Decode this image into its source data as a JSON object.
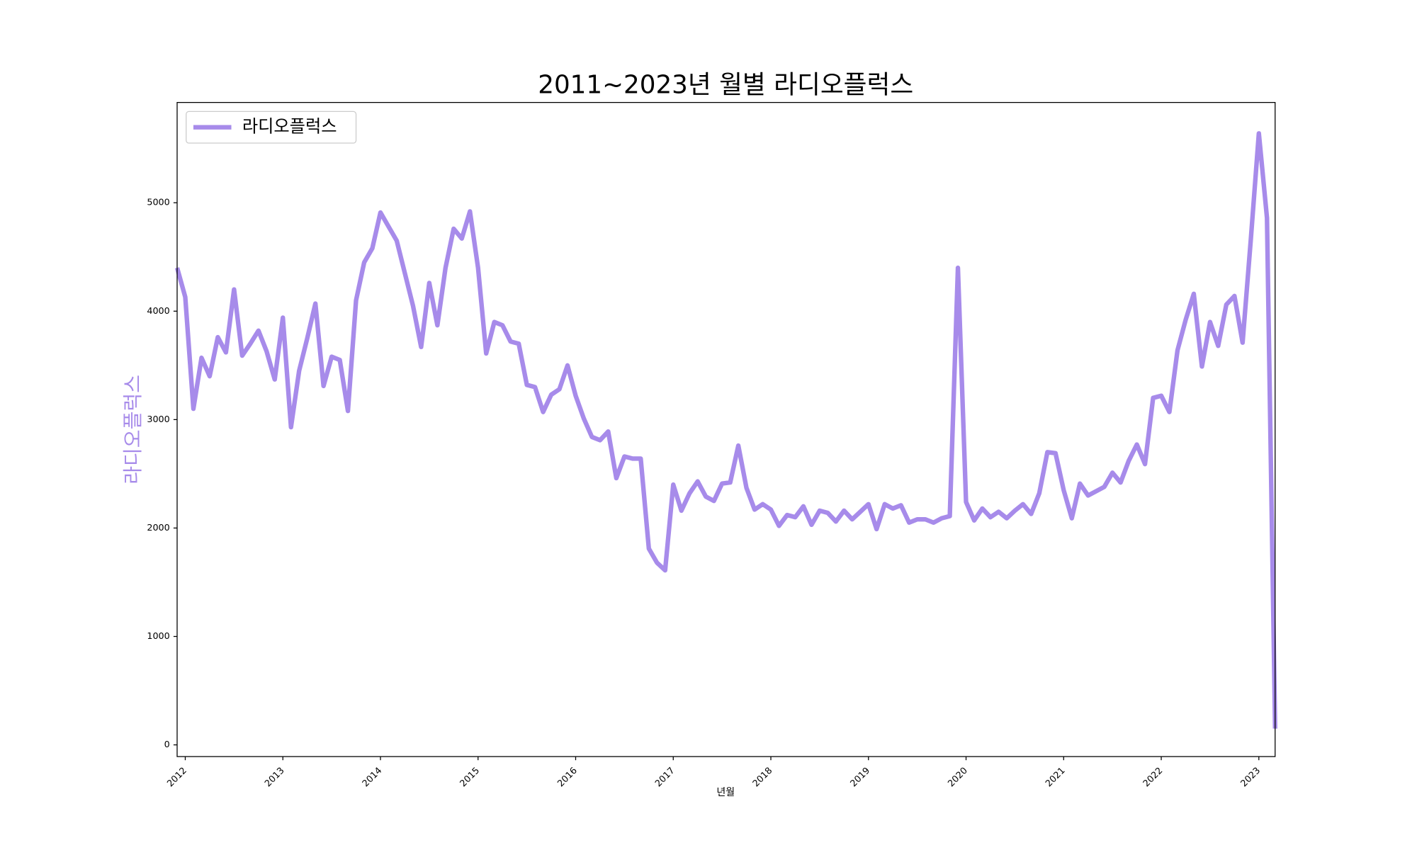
{
  "chart_data": {
    "type": "line",
    "title": "2011~2023년 월별 라디오플럭스",
    "x_label": "년월",
    "y_label": "라디오플럭스",
    "x": [
      "2011-12",
      "2012-01",
      "2012-02",
      "2012-03",
      "2012-04",
      "2012-05",
      "2012-06",
      "2012-07",
      "2012-08",
      "2012-09",
      "2012-10",
      "2012-11",
      "2012-12",
      "2013-01",
      "2013-02",
      "2013-03",
      "2013-04",
      "2013-05",
      "2013-06",
      "2013-07",
      "2013-08",
      "2013-09",
      "2013-10",
      "2013-11",
      "2013-12",
      "2014-01",
      "2014-02",
      "2014-03",
      "2014-04",
      "2014-05",
      "2014-06",
      "2014-07",
      "2014-08",
      "2014-09",
      "2014-10",
      "2014-11",
      "2014-12",
      "2015-01",
      "2015-02",
      "2015-03",
      "2015-04",
      "2015-05",
      "2015-06",
      "2015-07",
      "2015-08",
      "2015-09",
      "2015-10",
      "2015-11",
      "2015-12",
      "2016-01",
      "2016-02",
      "2016-03",
      "2016-04",
      "2016-05",
      "2016-06",
      "2016-07",
      "2016-08",
      "2016-09",
      "2016-10",
      "2016-11",
      "2016-12",
      "2017-01",
      "2017-02",
      "2017-03",
      "2017-04",
      "2017-05",
      "2017-06",
      "2017-07",
      "2017-08",
      "2017-09",
      "2017-10",
      "2017-11",
      "2017-12",
      "2018-01",
      "2018-02",
      "2018-03",
      "2018-04",
      "2018-05",
      "2018-06",
      "2018-07",
      "2018-08",
      "2018-09",
      "2018-10",
      "2018-11",
      "2018-12",
      "2019-01",
      "2019-02",
      "2019-03",
      "2019-04",
      "2019-05",
      "2019-06",
      "2019-07",
      "2019-08",
      "2019-09",
      "2019-10",
      "2019-11",
      "2019-12",
      "2020-01",
      "2020-02",
      "2020-03",
      "2020-04",
      "2020-05",
      "2020-06",
      "2020-07",
      "2020-08",
      "2020-09",
      "2020-10",
      "2020-11",
      "2020-12",
      "2021-01",
      "2021-02",
      "2021-03",
      "2021-04",
      "2021-05",
      "2021-06",
      "2021-07",
      "2021-08",
      "2021-09",
      "2021-10",
      "2021-11",
      "2021-12",
      "2022-01",
      "2022-02",
      "2022-03",
      "2022-04",
      "2022-05",
      "2022-06",
      "2022-07",
      "2022-08",
      "2022-09",
      "2022-10",
      "2022-11",
      "2022-12",
      "2023-01",
      "2023-02",
      "2023-03"
    ],
    "series": [
      {
        "name": "라디오플럭스",
        "color": "#a78bea",
        "values": [
          4400,
          4130,
          3100,
          3570,
          3400,
          3760,
          3620,
          4200,
          3590,
          3700,
          3820,
          3630,
          3370,
          3940,
          2930,
          3450,
          3750,
          4070,
          3310,
          3580,
          3550,
          3080,
          4100,
          4450,
          4580,
          4910,
          4780,
          4650,
          4350,
          4050,
          3670,
          4260,
          3870,
          4400,
          4760,
          4670,
          4920,
          4400,
          3610,
          3900,
          3870,
          3720,
          3700,
          3320,
          3300,
          3070,
          3230,
          3280,
          3500,
          3220,
          3010,
          2840,
          2810,
          2890,
          2460,
          2660,
          2640,
          2640,
          1810,
          1680,
          1610,
          2400,
          2160,
          2320,
          2430,
          2290,
          2250,
          2410,
          2420,
          2760,
          2370,
          2170,
          2220,
          2170,
          2020,
          2120,
          2100,
          2200,
          2030,
          2160,
          2140,
          2060,
          2160,
          2080,
          2150,
          2220,
          1990,
          2220,
          2180,
          2210,
          2050,
          2080,
          2080,
          2050,
          2090,
          2110,
          4400,
          2240,
          2070,
          2180,
          2100,
          2150,
          2090,
          2160,
          2220,
          2130,
          2320,
          2700,
          2690,
          2350,
          2090,
          2410,
          2300,
          2340,
          2380,
          2510,
          2420,
          2620,
          2770,
          2590,
          3200,
          3220,
          3070,
          3640,
          3920,
          4160,
          3490,
          3900,
          3680,
          4060,
          4140,
          3710,
          4650,
          5640,
          4860,
          150
        ]
      }
    ],
    "xlim": [
      "2011-12",
      "2023-03"
    ],
    "xticks": [
      {
        "value": "2012-01",
        "label": "2012"
      },
      {
        "value": "2013-01",
        "label": "2013"
      },
      {
        "value": "2014-01",
        "label": "2014"
      },
      {
        "value": "2015-01",
        "label": "2015"
      },
      {
        "value": "2016-01",
        "label": "2016"
      },
      {
        "value": "2017-01",
        "label": "2017"
      },
      {
        "value": "2018-01",
        "label": "2018"
      },
      {
        "value": "2019-01",
        "label": "2019"
      },
      {
        "value": "2020-01",
        "label": "2020"
      },
      {
        "value": "2021-01",
        "label": "2021"
      },
      {
        "value": "2022-01",
        "label": "2022"
      },
      {
        "value": "2023-01",
        "label": "2023"
      }
    ],
    "ylim": [
      -108,
      5925
    ],
    "yticks": [
      0,
      1000,
      2000,
      3000,
      4000,
      5000
    ],
    "legend": "upper left",
    "grid": false
  }
}
